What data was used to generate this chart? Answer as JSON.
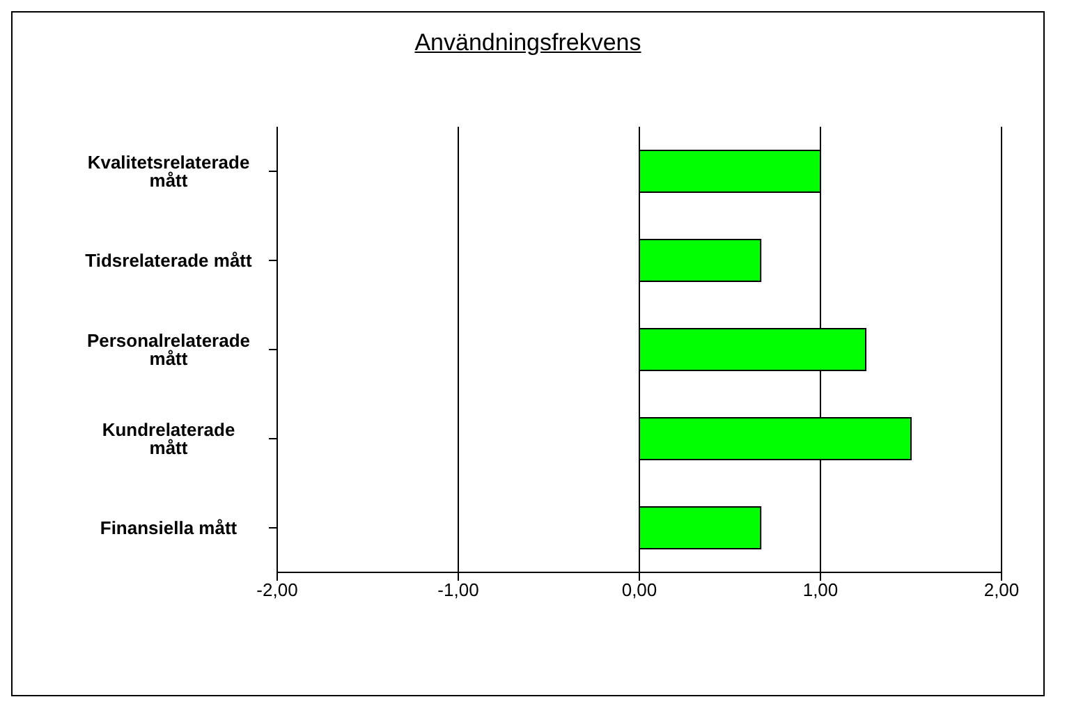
{
  "chart_data": {
    "type": "bar",
    "orientation": "horizontal",
    "title": "Användningsfrekvens",
    "categories": [
      "Kvalitetsrelaterade mått",
      "Tidsrelaterade mått",
      "Personalrelaterade mått",
      "Kundrelaterade mått",
      "Finansiella mått"
    ],
    "values": [
      1.0,
      0.67,
      1.25,
      1.5,
      0.67
    ],
    "color": "#00ff00",
    "xlim": [
      -2,
      2
    ],
    "xticks": [
      {
        "value": -2,
        "label": "-2,00"
      },
      {
        "value": -1,
        "label": "-1,00"
      },
      {
        "value": 0,
        "label": "0,00"
      },
      {
        "value": 1,
        "label": "1,00"
      },
      {
        "value": 2,
        "label": "2,00"
      }
    ],
    "grid": "x"
  }
}
